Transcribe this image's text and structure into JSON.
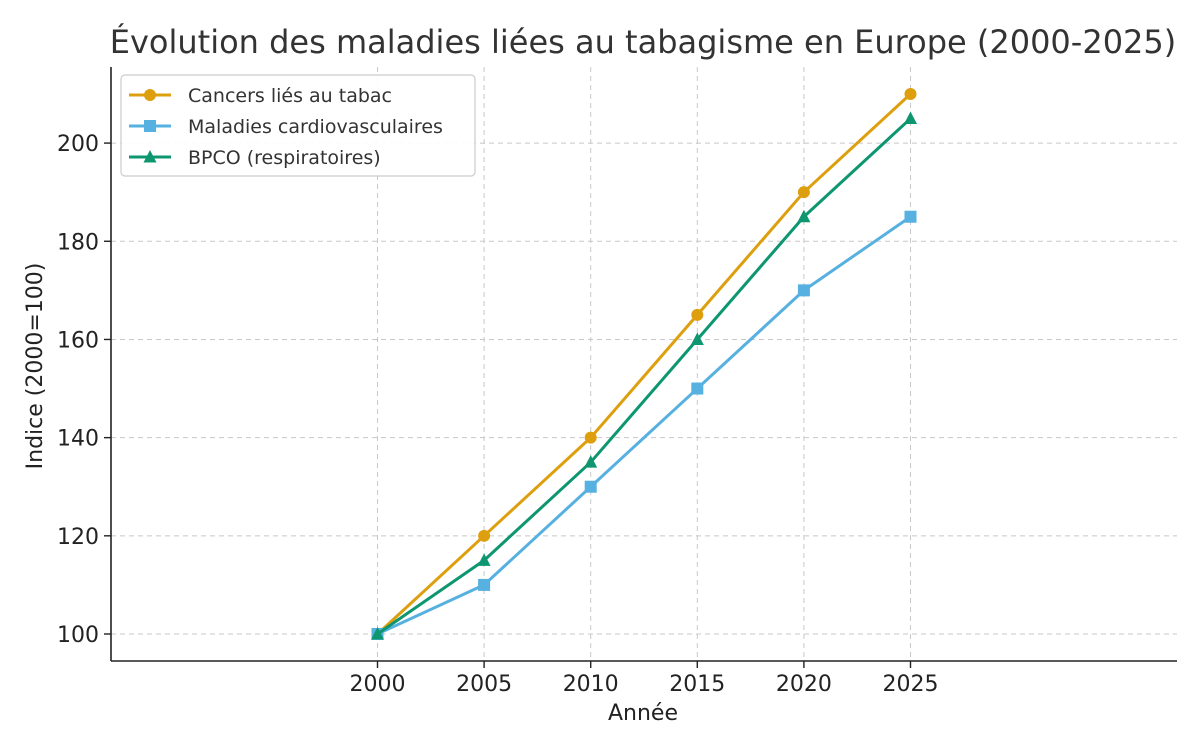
{
  "chart_data": {
    "type": "line",
    "title": "Évolution des maladies liées au tabagisme en Europe (2000-2025)",
    "xlabel": "Année",
    "ylabel": "Indice (2000=100)",
    "x": [
      2000,
      2005,
      2010,
      2015,
      2020,
      2025
    ],
    "x_tick_labels": [
      "2000",
      "2005",
      "2010",
      "2015",
      "2020",
      "2025"
    ],
    "xlim": [
      1987.5,
      2037.5
    ],
    "y_ticks": [
      100,
      120,
      140,
      160,
      180,
      200
    ],
    "y_tick_labels": [
      "100",
      "120",
      "140",
      "160",
      "180",
      "200"
    ],
    "ylim": [
      94.5,
      215.5
    ],
    "grid": true,
    "legend_position": "top-left",
    "series": [
      {
        "name": "Cancers liés au tabac",
        "values": [
          100,
          120,
          140,
          165,
          190,
          210
        ],
        "color": "#DE9F0F",
        "marker": "circle"
      },
      {
        "name": "Maladies cardiovasculaires",
        "values": [
          100,
          110,
          130,
          150,
          170,
          185
        ],
        "color": "#56B0E0",
        "marker": "square"
      },
      {
        "name": "BPCO (respiratoires)",
        "values": [
          100,
          115,
          135,
          160,
          185,
          205
        ],
        "color": "#0E9670",
        "marker": "triangle"
      }
    ]
  }
}
